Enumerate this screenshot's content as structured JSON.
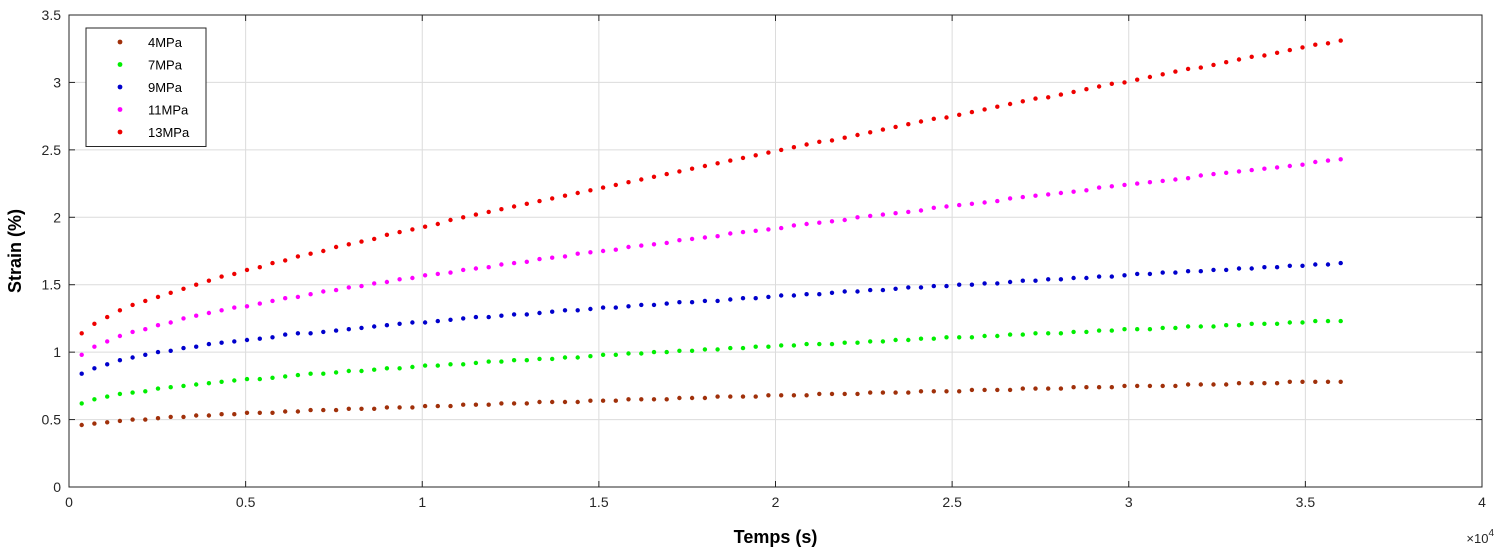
{
  "chart_data": {
    "type": "scatter",
    "title": "",
    "xlabel": "Temps (s)",
    "ylabel": "Strain (%)",
    "x_multiplier": "×10",
    "x_exponent": "4",
    "xlim": [
      0,
      40000
    ],
    "ylim": [
      0,
      3.5
    ],
    "xticks": [
      0,
      5000,
      10000,
      15000,
      20000,
      25000,
      30000,
      35000,
      40000
    ],
    "xtick_labels": [
      "0",
      "0.5",
      "1",
      "1.5",
      "2",
      "2.5",
      "3",
      "3.5",
      "4"
    ],
    "yticks": [
      0,
      0.5,
      1,
      1.5,
      2,
      2.5,
      3,
      3.5
    ],
    "ytick_labels": [
      "0",
      "0.5",
      "1",
      "1.5",
      "2",
      "2.5",
      "3",
      "3.5"
    ],
    "grid": true,
    "legend_position": "top-left",
    "x": [
      360,
      720,
      1080,
      1440,
      1800,
      2160,
      2520,
      2880,
      3240,
      3600,
      3960,
      4320,
      4680,
      5040,
      5400,
      5760,
      6120,
      6480,
      6840,
      7200,
      7560,
      7920,
      8280,
      8640,
      9000,
      9360,
      9720,
      10080,
      10440,
      10800,
      11160,
      11520,
      11880,
      12240,
      12600,
      12960,
      13320,
      13680,
      14040,
      14400,
      14760,
      15120,
      15480,
      15840,
      16200,
      16560,
      16920,
      17280,
      17640,
      18000,
      18360,
      18720,
      19080,
      19440,
      19800,
      20160,
      20520,
      20880,
      21240,
      21600,
      21960,
      22320,
      22680,
      23040,
      23400,
      23760,
      24120,
      24480,
      24840,
      25200,
      25560,
      25920,
      26280,
      26640,
      27000,
      27360,
      27720,
      28080,
      28440,
      28800,
      29160,
      29520,
      29880,
      30240,
      30600,
      30960,
      31320,
      31680,
      32040,
      32400,
      32760,
      33120,
      33480,
      33840,
      34200,
      34560,
      34920,
      35280,
      35640,
      36000
    ],
    "series": [
      {
        "name": "4MPa",
        "color": "#a0300a",
        "values": [
          0.46,
          0.47,
          0.48,
          0.49,
          0.5,
          0.5,
          0.51,
          0.52,
          0.52,
          0.53,
          0.53,
          0.54,
          0.54,
          0.55,
          0.55,
          0.55,
          0.56,
          0.56,
          0.57,
          0.57,
          0.57,
          0.58,
          0.58,
          0.58,
          0.59,
          0.59,
          0.59,
          0.6,
          0.6,
          0.6,
          0.61,
          0.61,
          0.61,
          0.62,
          0.62,
          0.62,
          0.63,
          0.63,
          0.63,
          0.63,
          0.64,
          0.64,
          0.64,
          0.65,
          0.65,
          0.65,
          0.65,
          0.66,
          0.66,
          0.66,
          0.67,
          0.67,
          0.67,
          0.67,
          0.68,
          0.68,
          0.68,
          0.68,
          0.69,
          0.69,
          0.69,
          0.69,
          0.7,
          0.7,
          0.7,
          0.7,
          0.71,
          0.71,
          0.71,
          0.71,
          0.72,
          0.72,
          0.72,
          0.72,
          0.73,
          0.73,
          0.73,
          0.73,
          0.74,
          0.74,
          0.74,
          0.74,
          0.75,
          0.75,
          0.75,
          0.75,
          0.75,
          0.76,
          0.76,
          0.76,
          0.76,
          0.77,
          0.77,
          0.77,
          0.77,
          0.78,
          0.78,
          0.78,
          0.78,
          0.78
        ]
      },
      {
        "name": "7MPa",
        "color": "#00ee00",
        "values": [
          0.62,
          0.65,
          0.67,
          0.69,
          0.7,
          0.71,
          0.73,
          0.74,
          0.75,
          0.76,
          0.77,
          0.78,
          0.79,
          0.8,
          0.8,
          0.81,
          0.82,
          0.83,
          0.84,
          0.84,
          0.85,
          0.86,
          0.86,
          0.87,
          0.88,
          0.88,
          0.89,
          0.9,
          0.9,
          0.91,
          0.91,
          0.92,
          0.93,
          0.93,
          0.94,
          0.94,
          0.95,
          0.95,
          0.96,
          0.96,
          0.97,
          0.98,
          0.98,
          0.99,
          0.99,
          1.0,
          1.0,
          1.01,
          1.01,
          1.02,
          1.02,
          1.03,
          1.03,
          1.04,
          1.04,
          1.05,
          1.05,
          1.06,
          1.06,
          1.06,
          1.07,
          1.07,
          1.08,
          1.08,
          1.09,
          1.09,
          1.1,
          1.1,
          1.11,
          1.11,
          1.11,
          1.12,
          1.12,
          1.13,
          1.13,
          1.14,
          1.14,
          1.14,
          1.15,
          1.15,
          1.16,
          1.16,
          1.17,
          1.17,
          1.17,
          1.18,
          1.18,
          1.19,
          1.19,
          1.19,
          1.2,
          1.2,
          1.21,
          1.21,
          1.21,
          1.22,
          1.22,
          1.23,
          1.23,
          1.23
        ]
      },
      {
        "name": "9MPa",
        "color": "#0000cc",
        "values": [
          0.84,
          0.88,
          0.91,
          0.94,
          0.96,
          0.98,
          1.0,
          1.01,
          1.03,
          1.04,
          1.06,
          1.07,
          1.08,
          1.09,
          1.1,
          1.11,
          1.13,
          1.14,
          1.14,
          1.15,
          1.16,
          1.17,
          1.18,
          1.19,
          1.2,
          1.21,
          1.22,
          1.22,
          1.23,
          1.24,
          1.25,
          1.26,
          1.26,
          1.27,
          1.28,
          1.28,
          1.29,
          1.3,
          1.31,
          1.31,
          1.32,
          1.33,
          1.33,
          1.34,
          1.35,
          1.35,
          1.36,
          1.37,
          1.37,
          1.38,
          1.38,
          1.39,
          1.4,
          1.4,
          1.41,
          1.42,
          1.42,
          1.43,
          1.43,
          1.44,
          1.45,
          1.45,
          1.46,
          1.46,
          1.47,
          1.48,
          1.48,
          1.49,
          1.49,
          1.5,
          1.5,
          1.51,
          1.51,
          1.52,
          1.53,
          1.53,
          1.54,
          1.54,
          1.55,
          1.55,
          1.56,
          1.56,
          1.57,
          1.58,
          1.58,
          1.59,
          1.59,
          1.6,
          1.6,
          1.61,
          1.61,
          1.62,
          1.62,
          1.63,
          1.63,
          1.64,
          1.64,
          1.65,
          1.65,
          1.66
        ]
      },
      {
        "name": "11MPa",
        "color": "#ff00ff",
        "values": [
          0.98,
          1.04,
          1.08,
          1.12,
          1.15,
          1.17,
          1.2,
          1.22,
          1.25,
          1.27,
          1.29,
          1.31,
          1.33,
          1.34,
          1.36,
          1.38,
          1.4,
          1.41,
          1.43,
          1.45,
          1.46,
          1.48,
          1.49,
          1.51,
          1.52,
          1.54,
          1.55,
          1.57,
          1.58,
          1.59,
          1.61,
          1.62,
          1.63,
          1.65,
          1.66,
          1.67,
          1.69,
          1.7,
          1.71,
          1.73,
          1.74,
          1.75,
          1.76,
          1.78,
          1.79,
          1.8,
          1.81,
          1.83,
          1.84,
          1.85,
          1.86,
          1.88,
          1.89,
          1.9,
          1.91,
          1.92,
          1.94,
          1.95,
          1.96,
          1.97,
          1.98,
          2.0,
          2.01,
          2.02,
          2.03,
          2.04,
          2.05,
          2.07,
          2.08,
          2.09,
          2.1,
          2.11,
          2.12,
          2.14,
          2.15,
          2.16,
          2.17,
          2.18,
          2.19,
          2.2,
          2.22,
          2.23,
          2.24,
          2.25,
          2.26,
          2.27,
          2.28,
          2.29,
          2.31,
          2.32,
          2.33,
          2.34,
          2.35,
          2.36,
          2.37,
          2.38,
          2.39,
          2.41,
          2.42,
          2.43
        ]
      },
      {
        "name": "13MPa",
        "color": "#ee0000",
        "values": [
          1.14,
          1.21,
          1.26,
          1.31,
          1.35,
          1.38,
          1.41,
          1.44,
          1.47,
          1.5,
          1.53,
          1.56,
          1.58,
          1.61,
          1.63,
          1.66,
          1.68,
          1.71,
          1.73,
          1.75,
          1.78,
          1.8,
          1.82,
          1.84,
          1.87,
          1.89,
          1.91,
          1.93,
          1.95,
          1.98,
          2.0,
          2.02,
          2.04,
          2.06,
          2.08,
          2.1,
          2.12,
          2.14,
          2.16,
          2.18,
          2.2,
          2.22,
          2.24,
          2.26,
          2.28,
          2.3,
          2.32,
          2.34,
          2.36,
          2.38,
          2.4,
          2.42,
          2.44,
          2.46,
          2.48,
          2.5,
          2.52,
          2.54,
          2.56,
          2.57,
          2.59,
          2.61,
          2.63,
          2.65,
          2.67,
          2.69,
          2.71,
          2.73,
          2.74,
          2.76,
          2.78,
          2.8,
          2.82,
          2.84,
          2.86,
          2.88,
          2.89,
          2.91,
          2.93,
          2.95,
          2.97,
          2.99,
          3.0,
          3.02,
          3.04,
          3.06,
          3.08,
          3.1,
          3.11,
          3.13,
          3.15,
          3.17,
          3.19,
          3.2,
          3.22,
          3.24,
          3.26,
          3.28,
          3.29,
          3.31
        ]
      }
    ]
  }
}
